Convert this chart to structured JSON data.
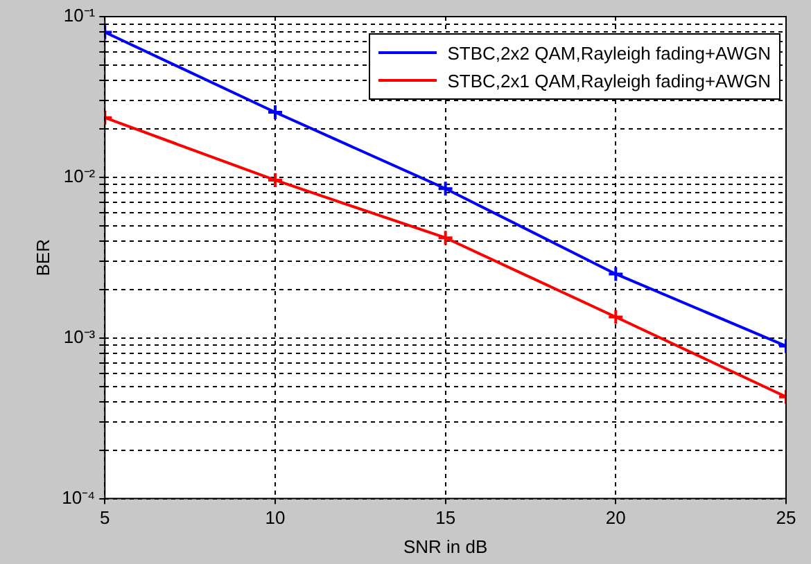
{
  "chart_data": {
    "type": "line",
    "xlabel": "SNR in dB",
    "ylabel": "BER",
    "log": "y",
    "grid": true,
    "legend": "top right",
    "marker": "cross",
    "line_style": "solid",
    "x": [
      5,
      10,
      15,
      20,
      25
    ],
    "xlim": [
      5,
      25
    ],
    "xticks": [
      5,
      10,
      15,
      20,
      25
    ],
    "ylim": [
      0.0001,
      0.1
    ],
    "yticks": [
      {
        "value": 0.0001,
        "label": "10⁻⁴"
      },
      {
        "value": 0.0002,
        "label": null
      },
      {
        "value": 0.0003,
        "label": null
      },
      {
        "value": 0.0004,
        "label": null
      },
      {
        "value": 0.0005,
        "label": null
      },
      {
        "value": 0.0006,
        "label": null
      },
      {
        "value": 0.0007,
        "label": null
      },
      {
        "value": 0.0008,
        "label": null
      },
      {
        "value": 0.0009,
        "label": null
      },
      {
        "value": 0.001,
        "label": "10⁻³"
      },
      {
        "value": 0.002,
        "label": null
      },
      {
        "value": 0.003,
        "label": null
      },
      {
        "value": 0.004,
        "label": null
      },
      {
        "value": 0.005,
        "label": null
      },
      {
        "value": 0.006,
        "label": null
      },
      {
        "value": 0.007,
        "label": null
      },
      {
        "value": 0.008,
        "label": null
      },
      {
        "value": 0.009,
        "label": null
      },
      {
        "value": 0.01,
        "label": "10⁻²"
      },
      {
        "value": 0.02,
        "label": null
      },
      {
        "value": 0.03,
        "label": null
      },
      {
        "value": 0.04,
        "label": null
      },
      {
        "value": 0.05,
        "label": null
      },
      {
        "value": 0.06,
        "label": null
      },
      {
        "value": 0.07,
        "label": null
      },
      {
        "value": 0.08,
        "label": null
      },
      {
        "value": 0.09,
        "label": null
      },
      {
        "value": 0.1,
        "label": "10⁻¹"
      }
    ],
    "series": [
      {
        "name": "STBC,2x2 QAM,Rayleigh fading+AWGN",
        "color": "#0000ff",
        "values": [
          0.08,
          0.0254,
          0.0085,
          0.0025,
          0.00089
        ]
      },
      {
        "name": "STBC,2x1 QAM,Rayleigh fading+AWGN",
        "color": "#ff0000",
        "values": [
          0.0235,
          0.0096,
          0.0042,
          0.00135,
          0.00043
        ]
      }
    ]
  }
}
